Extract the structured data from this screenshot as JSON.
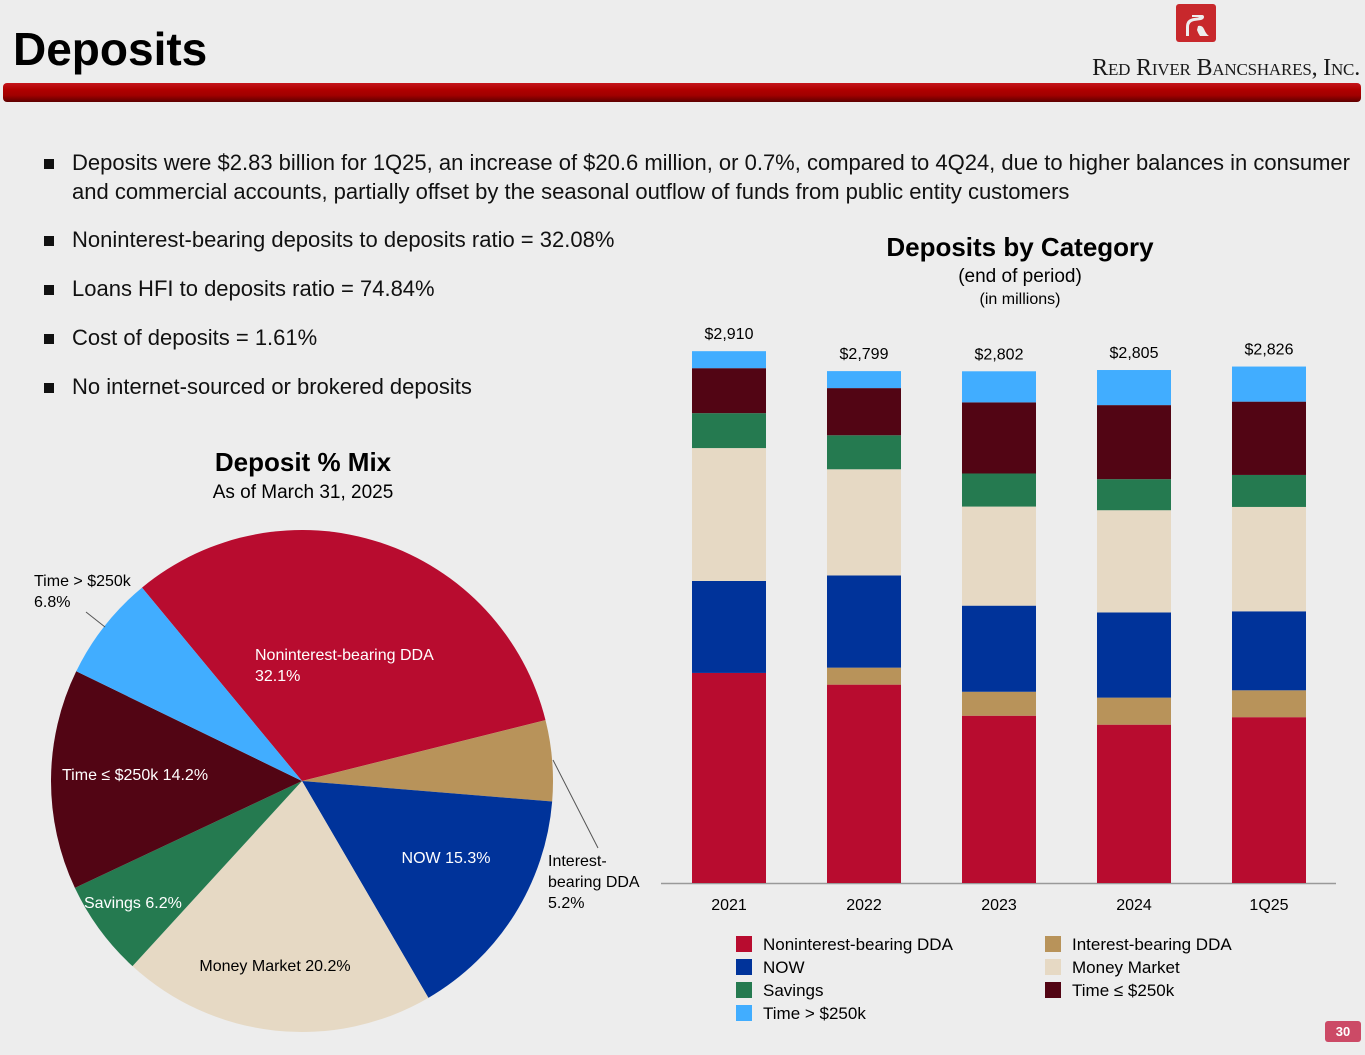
{
  "header": {
    "title": "Deposits",
    "company_name": "Red River Bancshares, Inc.",
    "logo_icon": "red-river-logo-icon"
  },
  "bullets": [
    "Deposits were $2.83 billion for 1Q25, an increase of $20.6 million, or 0.7%, compared to 4Q24, due to higher balances in consumer and commercial accounts, partially offset by the seasonal outflow of funds from public entity customers",
    "Noninterest-bearing deposits to deposits ratio = 32.08%",
    "Loans HFI to deposits ratio = 74.84%",
    "Cost of deposits = 1.61%",
    "No internet-sourced or brokered deposits"
  ],
  "colors": {
    "Noninterest-bearing DDA": "#b80c2f",
    "Interest-bearing DDA": "#b8935a",
    "NOW": "#00339a",
    "Money Market": "#e6d9c4",
    "Savings": "#257a50",
    "Time ≤ $250k": "#520514",
    "Time > $250k": "#41adff"
  },
  "chart_data": [
    {
      "type": "pie",
      "title": "Deposit % Mix",
      "subtitle": "As of March 31, 2025",
      "slices": [
        {
          "label": "Noninterest-bearing DDA",
          "value": 32.1,
          "display": "Noninterest-bearing DDA\n32.1%"
        },
        {
          "label": "Interest-bearing DDA",
          "value": 5.2,
          "display": "Interest-\nbearing DDA\n5.2%"
        },
        {
          "label": "NOW",
          "value": 15.3,
          "display": "NOW 15.3%"
        },
        {
          "label": "Money Market",
          "value": 20.2,
          "display": "Money Market 20.2%"
        },
        {
          "label": "Savings",
          "value": 6.2,
          "display": "Savings 6.2%"
        },
        {
          "label": "Time ≤ $250k",
          "value": 14.2,
          "display": "Time ≤ $250k 14.2%"
        },
        {
          "label": "Time > $250k",
          "value": 6.8,
          "display": "Time > $250k\n6.8%"
        }
      ],
      "unit": "%"
    },
    {
      "type": "bar",
      "stacked": true,
      "title": "Deposits by Category",
      "subtitle": "(end of period)",
      "subtitle2": "(in millions)",
      "categories": [
        "2021",
        "2022",
        "2023",
        "2024",
        "1Q25"
      ],
      "totals": [
        "$2,910",
        "$2,799",
        "$2,802",
        "$2,805",
        "$2,826"
      ],
      "series": [
        {
          "name": "Noninterest-bearing DDA",
          "values": [
            1149,
            1085,
            915,
            866,
            907
          ]
        },
        {
          "name": "Interest-bearing DDA",
          "values": [
            0,
            93,
            131,
            148,
            147
          ]
        },
        {
          "name": "NOW",
          "values": [
            503,
            504,
            471,
            466,
            432
          ]
        },
        {
          "name": "Money Market",
          "values": [
            727,
            581,
            542,
            559,
            571
          ]
        },
        {
          "name": "Savings",
          "values": [
            191,
            186,
            181,
            170,
            175
          ]
        },
        {
          "name": "Time ≤ $250k",
          "values": [
            246,
            258,
            389,
            405,
            401
          ]
        },
        {
          "name": "Time > $250k",
          "values": [
            93,
            93,
            170,
            192,
            192
          ]
        }
      ],
      "xlabel": "",
      "ylabel": "",
      "ylim": [
        0,
        2910
      ],
      "grid": false,
      "legend": "bottom",
      "legend_order": [
        "Noninterest-bearing DDA",
        "Interest-bearing DDA",
        "NOW",
        "Money Market",
        "Savings",
        "Time ≤ $250k",
        "Time > $250k"
      ]
    }
  ],
  "footer": {
    "page_number": "30"
  }
}
